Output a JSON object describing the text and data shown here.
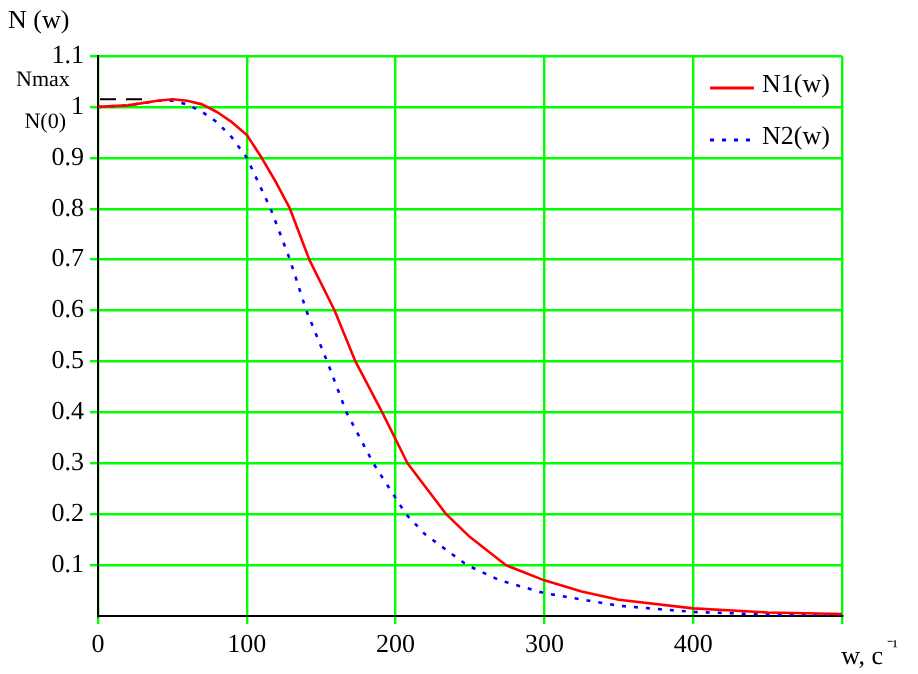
{
  "chart_data": {
    "type": "line",
    "xlabel": "w, c⁻¹",
    "ylabel": "N (w)",
    "xlim": [
      0,
      500
    ],
    "xticks": [
      0,
      100,
      200,
      300,
      400,
      {
        "value": 500,
        "label": null
      }
    ],
    "ylim": [
      0,
      1.1
    ],
    "yticks": [
      0.1,
      0.2,
      0.3,
      0.4,
      0.5,
      0.6,
      0.7,
      0.8,
      0.9,
      {
        "value": 1,
        "label": "1"
      },
      1.1
    ],
    "grid": true,
    "legend": "top right",
    "marker": "none",
    "ref_lines": [
      {
        "axis": "y",
        "value": 1.015,
        "label": "Nmax",
        "line_style": "dashed",
        "color": "#000000"
      }
    ],
    "annotations": [
      {
        "text": "N(0)",
        "x": 0,
        "y": 1
      }
    ],
    "series": [
      {
        "name": "N1(w)",
        "color": "#ff0000",
        "line_style": "solid",
        "x": [
          0,
          20,
          40,
          50,
          60,
          70,
          80,
          90,
          100,
          110,
          120,
          129,
          142,
          159,
          173,
          191,
          208,
          234,
          250,
          274,
          300,
          325,
          350,
          400,
          450,
          500
        ],
        "values": [
          1.0,
          1.003,
          1.012,
          1.015,
          1.012,
          1.005,
          0.99,
          0.97,
          0.945,
          0.9,
          0.85,
          0.8,
          0.7,
          0.6,
          0.5,
          0.4,
          0.3,
          0.2,
          0.155,
          0.1,
          0.07,
          0.048,
          0.032,
          0.015,
          0.007,
          0.004
        ]
      },
      {
        "name": "N2(w)",
        "color": "#0000ff",
        "line_style": "dotted",
        "x": [
          0,
          20,
          40,
          50,
          60,
          70,
          80,
          90,
          100,
          116,
          129,
          140,
          154,
          167,
          185,
          207,
          220,
          248,
          270,
          300,
          350,
          400,
          450,
          500
        ],
        "values": [
          1.0,
          1.003,
          1.012,
          1.012,
          1.005,
          0.99,
          0.97,
          0.94,
          0.9,
          0.8,
          0.7,
          0.6,
          0.5,
          0.4,
          0.3,
          0.2,
          0.16,
          0.1,
          0.07,
          0.045,
          0.02,
          0.008,
          0.003,
          0.001
        ]
      }
    ]
  }
}
